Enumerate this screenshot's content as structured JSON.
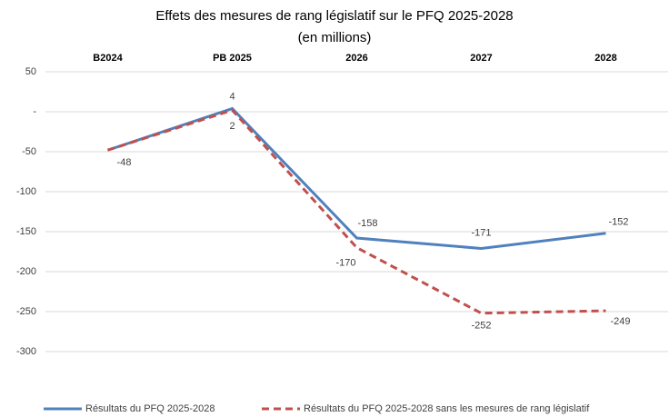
{
  "chart_data": {
    "type": "line",
    "title": "Effets des mesures de rang législatif sur le PFQ 2025-2028",
    "subtitle": "(en millions)",
    "categories": [
      "B2024",
      "PB 2025",
      "2026",
      "2027",
      "2028"
    ],
    "series": [
      {
        "name": "Résultats du PFQ 2025-2028",
        "color": "#4f81bd",
        "values": [
          -48,
          4,
          -158,
          -171,
          -152
        ]
      },
      {
        "name": "Résultats du PFQ 2025-2028 sans les mesures de rang législatif",
        "color": "#c0504d",
        "values": [
          -48,
          2,
          -170,
          -252,
          -249
        ]
      }
    ],
    "ylim": [
      -350,
      50
    ],
    "yticks": [
      50,
      {
        "value": 0,
        "label": "-"
      },
      -50,
      -100,
      -150,
      -200,
      -250,
      -300
    ],
    "grid": true
  }
}
